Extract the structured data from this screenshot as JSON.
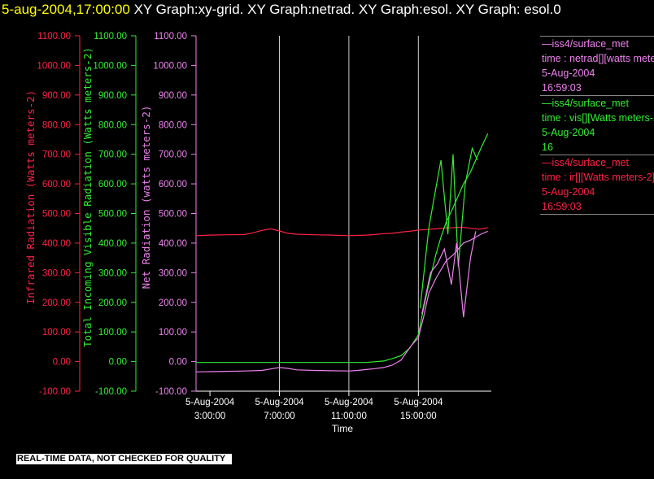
{
  "header": {
    "timestamp": "5-aug-2004,17:00:00",
    "title": " XY Graph:xy-grid.  XY Graph:netrad.  XY Graph:esol.  XY Graph: esol.0"
  },
  "footer": {
    "notice": "REAL-TIME DATA, NOT CHECKED FOR QUALITY"
  },
  "legend": [
    {
      "name": "—iss4/surface_met",
      "desc": "time : netrad[][watts meters-2]",
      "date": "5-Aug-2004",
      "time": "16:59:03",
      "color": "#ee82ee"
    },
    {
      "name": "—iss4/surface_met",
      "desc": "time : vis[][Watts meters-2]",
      "date": "5-Aug-2004",
      "time": "16",
      "color": "#33ee33"
    },
    {
      "name": "—iss4/surface_met",
      "desc": "time : ir[][Watts meters-2]",
      "date": "5-Aug-2004",
      "time": "16:59:03",
      "color": "#ff2244"
    }
  ],
  "chart_data": {
    "type": "line",
    "xlabel": "Time",
    "x_ticks": [
      {
        "date": "5-Aug-2004",
        "time": "3:00:00",
        "hour": 3
      },
      {
        "date": "5-Aug-2004",
        "time": "7:00:00",
        "hour": 7
      },
      {
        "date": "5-Aug-2004",
        "time": "11:00:00",
        "hour": 11
      },
      {
        "date": "5-Aug-2004",
        "time": "15:00:00",
        "hour": 15
      }
    ],
    "xlim_hours": [
      2.2,
      19.2
    ],
    "ylim": [
      -100,
      1100
    ],
    "y_ticks": [
      "-100.00",
      "0.00",
      "100.00",
      "200.00",
      "300.00",
      "400.00",
      "500.00",
      "600.00",
      "700.00",
      "800.00",
      "900.00",
      "1000.00",
      "1100.00"
    ],
    "axes": [
      {
        "label": "Infrared Radiation (Watts meters-2)",
        "color": "#ff2244"
      },
      {
        "label": "Total Incoming Visible Radiation (Watts meters-2)",
        "color": "#33ee33"
      },
      {
        "label": "Net Radiation (watts meters-2)",
        "color": "#ee82ee"
      }
    ],
    "grid": {
      "vertical_at_hours": [
        7,
        11,
        15
      ],
      "color": "#cccccc"
    },
    "series": [
      {
        "name": "ir",
        "color": "#ff2244",
        "x": [
          2.2,
          3,
          4,
          5,
          5.5,
          6,
          6.5,
          7,
          7.5,
          8,
          9,
          10,
          11,
          12,
          12.5,
          13,
          13.5,
          14,
          14.5,
          15,
          15.5,
          16,
          16.5,
          17,
          17.5,
          18,
          18.5,
          19
        ],
        "y": [
          425,
          427,
          428,
          429,
          435,
          443,
          448,
          441,
          433,
          430,
          428,
          427,
          425,
          427,
          429,
          432,
          433,
          437,
          440,
          444,
          446,
          448,
          451,
          452,
          454,
          450,
          447,
          452
        ]
      },
      {
        "name": "vis",
        "color": "#33ee33",
        "x": [
          2.2,
          4,
          6,
          8,
          10,
          11,
          12,
          13,
          13.5,
          14,
          14.5,
          15,
          15.3,
          15.6,
          16,
          16.3,
          16.6,
          17,
          17.3,
          17.6,
          18,
          18.3,
          18.6,
          19
        ],
        "y": [
          -3,
          -3,
          -3,
          -3,
          -3,
          -3,
          -3,
          2,
          10,
          20,
          45,
          90,
          180,
          260,
          360,
          420,
          470,
          520,
          560,
          600,
          640,
          680,
          720,
          770
        ]
      },
      {
        "name": "netrad",
        "color": "#ee82ee",
        "x": [
          2.2,
          3,
          4,
          5,
          6,
          6.5,
          7,
          7.5,
          8,
          9,
          10,
          11,
          11.5,
          12,
          12.5,
          13,
          13.5,
          14,
          14.3,
          14.6,
          15,
          15.3,
          15.6,
          16,
          16.3,
          16.6,
          17,
          17.3,
          17.6,
          18,
          18.3,
          18.6,
          19
        ],
        "y": [
          -35,
          -34,
          -33,
          -32,
          -30,
          -25,
          -20,
          -23,
          -28,
          -30,
          -31,
          -32,
          -30,
          -27,
          -24,
          -20,
          -12,
          5,
          30,
          55,
          80,
          150,
          230,
          280,
          310,
          340,
          360,
          380,
          400,
          410,
          420,
          430,
          440
        ]
      },
      {
        "name": "vis-spikes",
        "color": "#33ee33",
        "x": [
          15.1,
          15.6,
          15.9,
          16.3,
          16.7,
          17.0,
          17.3,
          17.7,
          18.1,
          18.4
        ],
        "y": [
          180,
          450,
          550,
          680,
          430,
          700,
          320,
          600,
          720,
          680
        ]
      },
      {
        "name": "netrad-spikes",
        "color": "#ee82ee",
        "x": [
          15.2,
          15.7,
          16.1,
          16.5,
          16.9,
          17.2,
          17.6,
          18.0,
          18.3
        ],
        "y": [
          160,
          300,
          330,
          380,
          260,
          400,
          150,
          350,
          440
        ]
      }
    ]
  }
}
